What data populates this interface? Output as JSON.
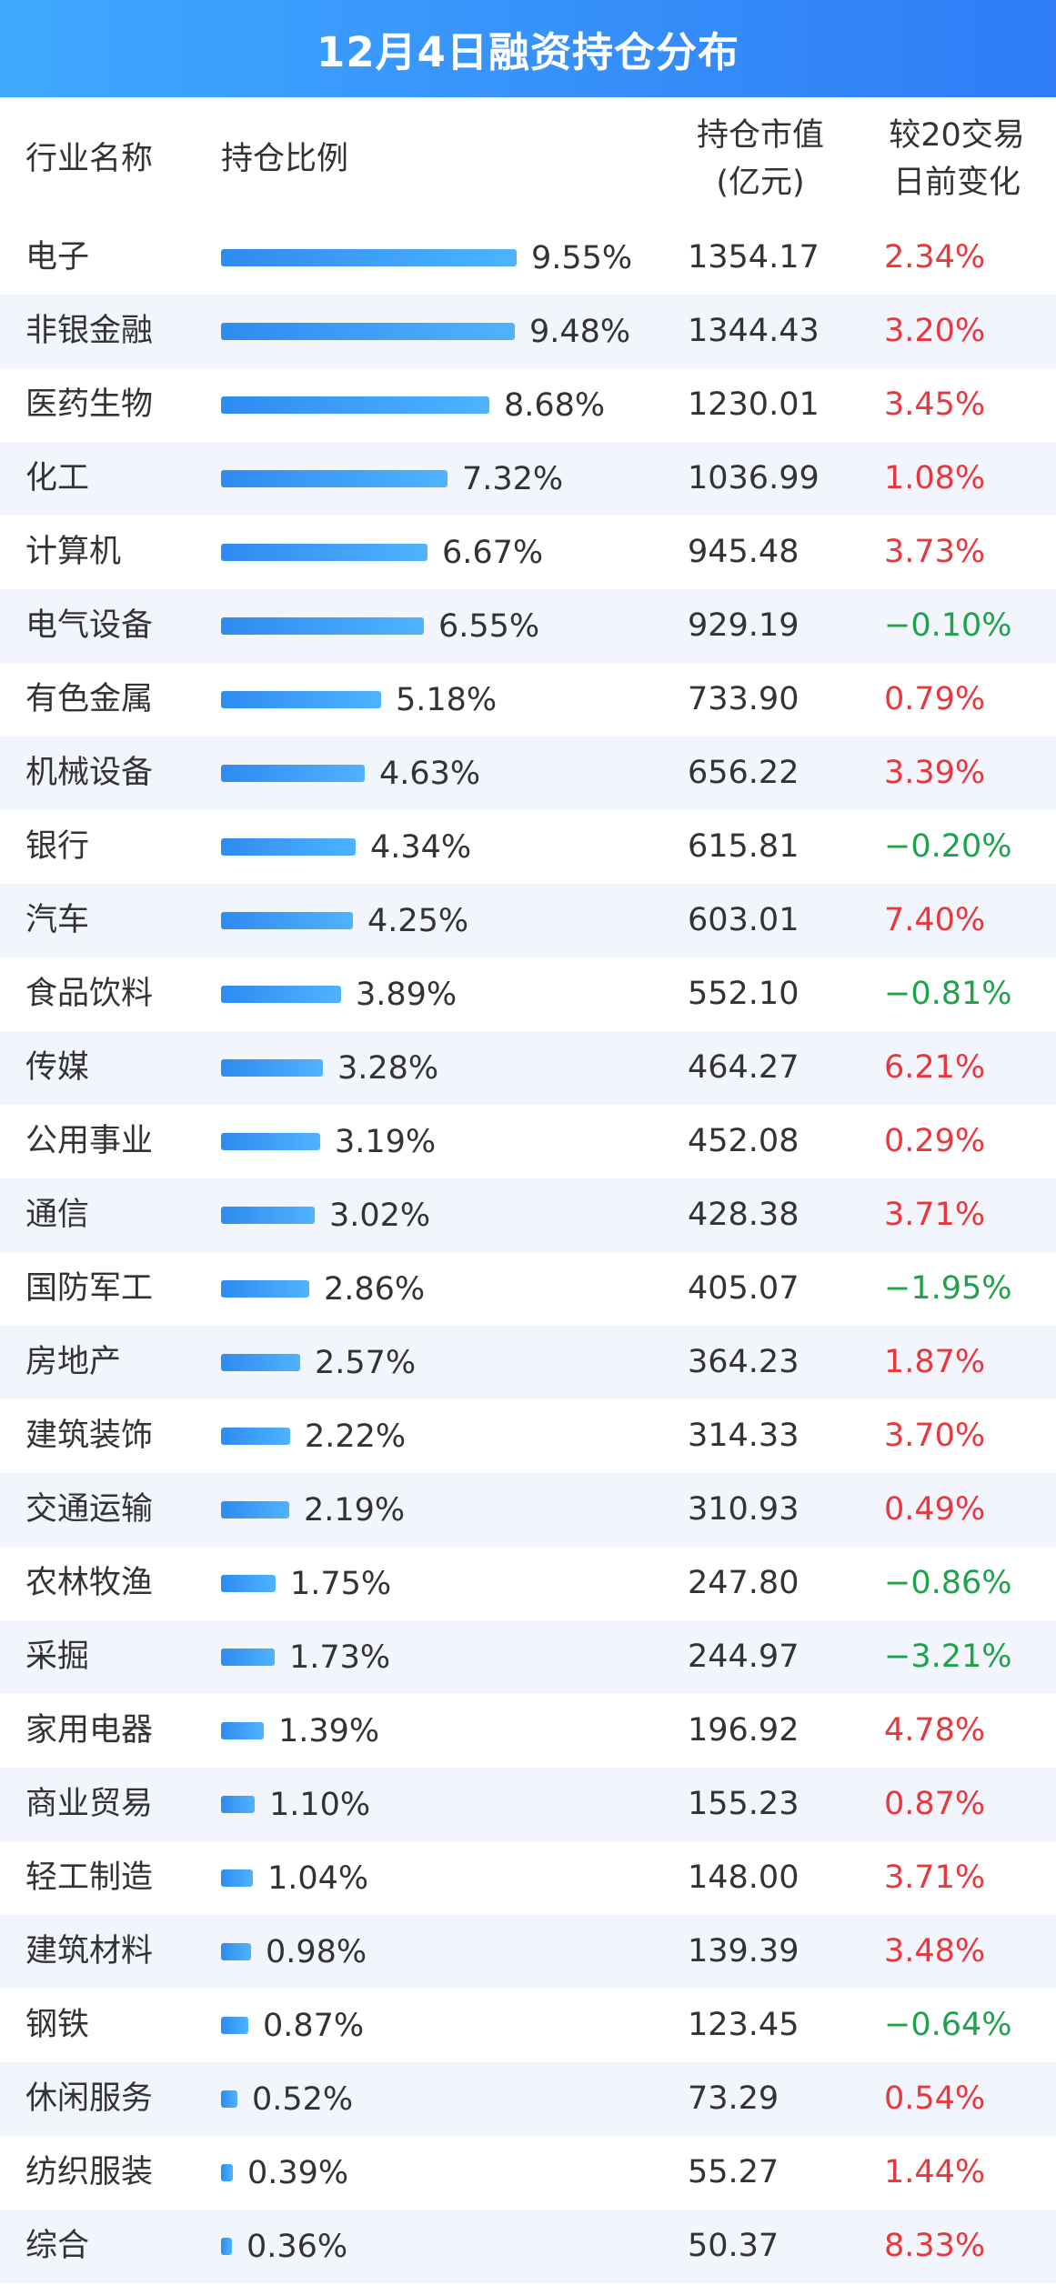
{
  "title": "12月4日融资持仓分布",
  "headers": {
    "name": "行业名称",
    "ratio": "持仓比例",
    "value_line1": "持仓市值",
    "value_line2": "(亿元)",
    "change_line1": "较20交易",
    "change_line2": "日前变化"
  },
  "colors": {
    "title_bg": "#3399ff",
    "bar": "#3a9af5",
    "up": "#e8383d",
    "down": "#1fa34a",
    "stripe": "#f2f6fc"
  },
  "chart_data": {
    "type": "table",
    "title": "12月4日融资持仓分布",
    "columns": [
      "行业名称",
      "持仓比例",
      "持仓市值(亿元)",
      "较20交易日前变化"
    ],
    "rows": [
      {
        "name": "电子",
        "ratio": 9.55,
        "ratio_label": "9.55%",
        "value": "1354.17",
        "change": "2.34%",
        "dir": "up"
      },
      {
        "name": "非银金融",
        "ratio": 9.48,
        "ratio_label": "9.48%",
        "value": "1344.43",
        "change": "3.20%",
        "dir": "up"
      },
      {
        "name": "医药生物",
        "ratio": 8.68,
        "ratio_label": "8.68%",
        "value": "1230.01",
        "change": "3.45%",
        "dir": "up"
      },
      {
        "name": "化工",
        "ratio": 7.32,
        "ratio_label": "7.32%",
        "value": "1036.99",
        "change": "1.08%",
        "dir": "up"
      },
      {
        "name": "计算机",
        "ratio": 6.67,
        "ratio_label": "6.67%",
        "value": "945.48",
        "change": "3.73%",
        "dir": "up"
      },
      {
        "name": "电气设备",
        "ratio": 6.55,
        "ratio_label": "6.55%",
        "value": "929.19",
        "change": "−0.10%",
        "dir": "down"
      },
      {
        "name": "有色金属",
        "ratio": 5.18,
        "ratio_label": "5.18%",
        "value": "733.90",
        "change": "0.79%",
        "dir": "up"
      },
      {
        "name": "机械设备",
        "ratio": 4.63,
        "ratio_label": "4.63%",
        "value": "656.22",
        "change": "3.39%",
        "dir": "up"
      },
      {
        "name": "银行",
        "ratio": 4.34,
        "ratio_label": "4.34%",
        "value": "615.81",
        "change": "−0.20%",
        "dir": "down"
      },
      {
        "name": "汽车",
        "ratio": 4.25,
        "ratio_label": "4.25%",
        "value": "603.01",
        "change": "7.40%",
        "dir": "up"
      },
      {
        "name": "食品饮料",
        "ratio": 3.89,
        "ratio_label": "3.89%",
        "value": "552.10",
        "change": "−0.81%",
        "dir": "down"
      },
      {
        "name": "传媒",
        "ratio": 3.28,
        "ratio_label": "3.28%",
        "value": "464.27",
        "change": "6.21%",
        "dir": "up"
      },
      {
        "name": "公用事业",
        "ratio": 3.19,
        "ratio_label": "3.19%",
        "value": "452.08",
        "change": "0.29%",
        "dir": "up"
      },
      {
        "name": "通信",
        "ratio": 3.02,
        "ratio_label": "3.02%",
        "value": "428.38",
        "change": "3.71%",
        "dir": "up"
      },
      {
        "name": "国防军工",
        "ratio": 2.86,
        "ratio_label": "2.86%",
        "value": "405.07",
        "change": "−1.95%",
        "dir": "down"
      },
      {
        "name": "房地产",
        "ratio": 2.57,
        "ratio_label": "2.57%",
        "value": "364.23",
        "change": "1.87%",
        "dir": "up"
      },
      {
        "name": "建筑装饰",
        "ratio": 2.22,
        "ratio_label": "2.22%",
        "value": "314.33",
        "change": "3.70%",
        "dir": "up"
      },
      {
        "name": "交通运输",
        "ratio": 2.19,
        "ratio_label": "2.19%",
        "value": "310.93",
        "change": "0.49%",
        "dir": "up"
      },
      {
        "name": "农林牧渔",
        "ratio": 1.75,
        "ratio_label": "1.75%",
        "value": "247.80",
        "change": "−0.86%",
        "dir": "down"
      },
      {
        "name": "采掘",
        "ratio": 1.73,
        "ratio_label": "1.73%",
        "value": "244.97",
        "change": "−3.21%",
        "dir": "down"
      },
      {
        "name": "家用电器",
        "ratio": 1.39,
        "ratio_label": "1.39%",
        "value": "196.92",
        "change": "4.78%",
        "dir": "up"
      },
      {
        "name": "商业贸易",
        "ratio": 1.1,
        "ratio_label": "1.10%",
        "value": "155.23",
        "change": "0.87%",
        "dir": "up"
      },
      {
        "name": "轻工制造",
        "ratio": 1.04,
        "ratio_label": "1.04%",
        "value": "148.00",
        "change": "3.71%",
        "dir": "up"
      },
      {
        "name": "建筑材料",
        "ratio": 0.98,
        "ratio_label": "0.98%",
        "value": "139.39",
        "change": "3.48%",
        "dir": "up"
      },
      {
        "name": "钢铁",
        "ratio": 0.87,
        "ratio_label": "0.87%",
        "value": "123.45",
        "change": "−0.64%",
        "dir": "down"
      },
      {
        "name": "休闲服务",
        "ratio": 0.52,
        "ratio_label": "0.52%",
        "value": "73.29",
        "change": "0.54%",
        "dir": "up"
      },
      {
        "name": "纺织服装",
        "ratio": 0.39,
        "ratio_label": "0.39%",
        "value": "55.27",
        "change": "1.44%",
        "dir": "up"
      },
      {
        "name": "综合",
        "ratio": 0.36,
        "ratio_label": "0.36%",
        "value": "50.37",
        "change": "8.33%",
        "dir": "up"
      }
    ]
  }
}
